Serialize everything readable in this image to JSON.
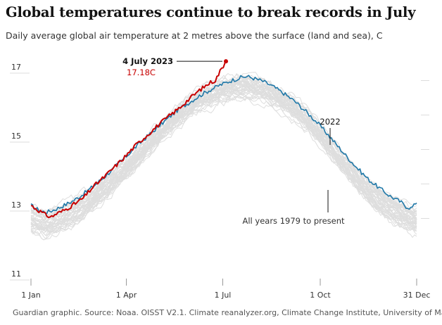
{
  "title": "Global temperatures continue to break records in July",
  "subtitle": "Daily average global air temperature at 2 metres above the surface (land and sea), C",
  "source": "Guardian graphic. Source: Noaa. OISST V2.1. Climate reanalyzer.org, Climate Change Institute, University of Maine",
  "colors": {
    "record_2023": "#c70000",
    "year_2022": "#1f78a8",
    "other_years": "#dedede",
    "axis": "#dcdcdc",
    "text": "#333333"
  },
  "chart_data": {
    "type": "line",
    "xlabel": "",
    "ylabel": "",
    "ylim": [
      11,
      17.3
    ],
    "xlim": [
      1,
      365
    ],
    "x_ticks": [
      {
        "day": 1,
        "label": "1 Jan"
      },
      {
        "day": 91,
        "label": "1 Apr"
      },
      {
        "day": 182,
        "label": "1 Jul"
      },
      {
        "day": 274,
        "label": "1 Oct"
      },
      {
        "day": 365,
        "label": "31 Dec"
      }
    ],
    "y_ticks": [
      {
        "value": 17,
        "label": "17"
      },
      {
        "value": 15,
        "label": "15"
      },
      {
        "value": 13,
        "label": "13"
      },
      {
        "value": 11,
        "label": "11"
      }
    ],
    "series": [
      {
        "name": "2023",
        "points": [
          [
            1,
            13.0
          ],
          [
            5,
            12.92
          ],
          [
            10,
            12.82
          ],
          [
            15,
            12.72
          ],
          [
            20,
            12.66
          ],
          [
            25,
            12.76
          ],
          [
            30,
            12.82
          ],
          [
            40,
            13.0
          ],
          [
            50,
            13.2
          ],
          [
            60,
            13.55
          ],
          [
            70,
            13.82
          ],
          [
            80,
            14.12
          ],
          [
            90,
            14.42
          ],
          [
            100,
            14.75
          ],
          [
            110,
            15.02
          ],
          [
            120,
            15.3
          ],
          [
            130,
            15.56
          ],
          [
            140,
            15.8
          ],
          [
            150,
            16.08
          ],
          [
            160,
            16.34
          ],
          [
            170,
            16.56
          ],
          [
            175,
            16.63
          ],
          [
            180,
            16.92
          ],
          [
            185,
            17.18
          ]
        ]
      },
      {
        "name": "2022",
        "points": [
          [
            1,
            13.0
          ],
          [
            5,
            12.92
          ],
          [
            10,
            12.84
          ],
          [
            15,
            12.8
          ],
          [
            20,
            12.84
          ],
          [
            25,
            12.9
          ],
          [
            30,
            12.97
          ],
          [
            40,
            13.12
          ],
          [
            50,
            13.32
          ],
          [
            60,
            13.56
          ],
          [
            70,
            13.82
          ],
          [
            80,
            14.1
          ],
          [
            90,
            14.4
          ],
          [
            100,
            14.7
          ],
          [
            110,
            14.98
          ],
          [
            120,
            15.25
          ],
          [
            130,
            15.52
          ],
          [
            140,
            15.78
          ],
          [
            150,
            15.98
          ],
          [
            160,
            16.18
          ],
          [
            170,
            16.35
          ],
          [
            180,
            16.5
          ],
          [
            190,
            16.62
          ],
          [
            200,
            16.72
          ],
          [
            205,
            16.74
          ],
          [
            210,
            16.7
          ],
          [
            220,
            16.6
          ],
          [
            230,
            16.44
          ],
          [
            240,
            16.24
          ],
          [
            250,
            16.02
          ],
          [
            260,
            15.74
          ],
          [
            270,
            15.44
          ],
          [
            280,
            15.1
          ],
          [
            290,
            14.74
          ],
          [
            300,
            14.38
          ],
          [
            310,
            14.05
          ],
          [
            320,
            13.74
          ],
          [
            330,
            13.5
          ],
          [
            340,
            13.27
          ],
          [
            350,
            13.1
          ],
          [
            355,
            12.97
          ],
          [
            360,
            12.92
          ],
          [
            365,
            13.07
          ]
        ]
      }
    ],
    "background_years": {
      "name": "All years 1979 to present",
      "count": 43,
      "base_curve": [
        [
          1,
          12.6
        ],
        [
          15,
          12.45
        ],
        [
          30,
          12.6
        ],
        [
          45,
          12.85
        ],
        [
          60,
          13.2
        ],
        [
          75,
          13.6
        ],
        [
          90,
          14.05
        ],
        [
          105,
          14.55
        ],
        [
          120,
          15.05
        ],
        [
          135,
          15.5
        ],
        [
          150,
          15.9
        ],
        [
          165,
          16.2
        ],
        [
          180,
          16.4
        ],
        [
          195,
          16.5
        ],
        [
          205,
          16.52
        ],
        [
          215,
          16.45
        ],
        [
          230,
          16.25
        ],
        [
          245,
          15.95
        ],
        [
          260,
          15.55
        ],
        [
          275,
          15.05
        ],
        [
          290,
          14.45
        ],
        [
          305,
          13.9
        ],
        [
          320,
          13.4
        ],
        [
          335,
          13.0
        ],
        [
          350,
          12.75
        ],
        [
          365,
          12.55
        ]
      ]
    },
    "annotations": [
      {
        "id": "record",
        "label": "4 July 2023",
        "value_label": "17.18C",
        "day": 185,
        "value": 17.18
      },
      {
        "id": "y2022",
        "label": "2022",
        "day": 278
      },
      {
        "id": "all_years",
        "label": "All years 1979 to present",
        "day": 278
      }
    ]
  }
}
